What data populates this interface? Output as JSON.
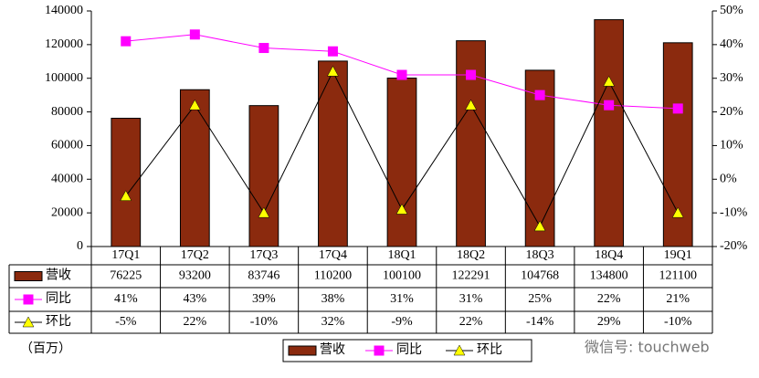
{
  "chart_data": {
    "type": "bar",
    "categories": [
      "17Q1",
      "17Q2",
      "17Q3",
      "17Q4",
      "18Q1",
      "18Q2",
      "18Q3",
      "18Q4",
      "19Q1"
    ],
    "series": [
      {
        "name": "营收",
        "type": "bar",
        "color": "#8b2a0e",
        "values": [
          76225,
          93200,
          83746,
          110200,
          100100,
          122291,
          104768,
          134800,
          121100
        ]
      },
      {
        "name": "同比",
        "type": "line",
        "axis": "y2",
        "color": "#ff00ff",
        "values": [
          41,
          43,
          39,
          38,
          31,
          31,
          25,
          22,
          21
        ],
        "value_labels": [
          "41%",
          "43%",
          "39%",
          "38%",
          "31%",
          "31%",
          "25%",
          "22%",
          "21%"
        ]
      },
      {
        "name": "环比",
        "type": "line",
        "axis": "y2",
        "color": "#000000",
        "marker_color": "#ffff00",
        "values": [
          -5,
          22,
          -10,
          32,
          -9,
          22,
          -14,
          29,
          -10
        ],
        "value_labels": [
          "-5%",
          "22%",
          "-10%",
          "32%",
          "-9%",
          "22%",
          "-14%",
          "29%",
          "-10%"
        ]
      }
    ],
    "ylim": [
      0,
      140000
    ],
    "yticks": [
      0,
      20000,
      40000,
      60000,
      80000,
      100000,
      120000,
      140000
    ],
    "y2lim": [
      -20,
      50
    ],
    "y2ticks": [
      {
        "value": -20,
        "label": "-20%"
      },
      {
        "value": -10,
        "label": "-10%"
      },
      {
        "value": 0,
        "label": "0%"
      },
      {
        "value": 10,
        "label": "10%"
      },
      {
        "value": 20,
        "label": "20%"
      },
      {
        "value": 30,
        "label": "30%"
      },
      {
        "value": 40,
        "label": "40%"
      },
      {
        "value": 50,
        "label": "50%"
      }
    ],
    "grid": false,
    "legend": "bottom",
    "note": "（百万）",
    "watermark": "微信号: touchweb"
  }
}
